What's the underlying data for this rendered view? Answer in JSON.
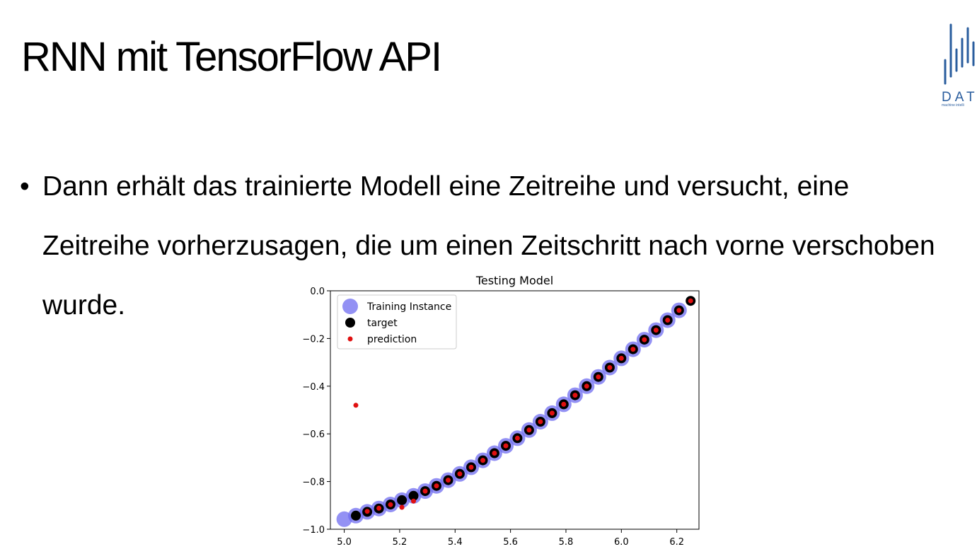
{
  "slide": {
    "title": "RNN mit TensorFlow API",
    "bullets": [
      "Dann erhält das trainierte Modell eine Zeitreihe und versucht, eine Zeitreihe vorherzusagen, die um einen Zeitschritt nach vorne verschoben wurde."
    ]
  },
  "logo": {
    "text": "DAT",
    "subtext": "machine intelli",
    "color": "#2a5d9e"
  },
  "chart_data": {
    "type": "scatter",
    "title": "Testing Model",
    "xlabel": "",
    "ylabel": "",
    "xlim": [
      4.95,
      6.28
    ],
    "ylim": [
      -1.0,
      0.0
    ],
    "xticks": [
      "5.0",
      "5.2",
      "5.4",
      "5.6",
      "5.8",
      "6.0",
      "6.2"
    ],
    "yticks": [
      "0.0",
      "−0.2",
      "−0.4",
      "−0.6",
      "−0.8",
      "−1.0"
    ],
    "legend_position": "top-left",
    "series": [
      {
        "name": "Training Instance",
        "color": "#6f6cf0",
        "marker": "large-circle",
        "x": [
          5.0,
          5.042,
          5.083,
          5.125,
          5.167,
          5.208,
          5.25,
          5.292,
          5.333,
          5.375,
          5.417,
          5.458,
          5.5,
          5.542,
          5.583,
          5.625,
          5.667,
          5.708,
          5.75,
          5.792,
          5.833,
          5.875,
          5.917,
          5.958,
          6.0,
          6.042,
          6.083,
          6.125,
          6.167,
          6.208
        ],
        "y": [
          -0.958,
          -0.943,
          -0.927,
          -0.913,
          -0.896,
          -0.878,
          -0.86,
          -0.84,
          -0.818,
          -0.794,
          -0.768,
          -0.74,
          -0.711,
          -0.681,
          -0.65,
          -0.618,
          -0.584,
          -0.549,
          -0.513,
          -0.476,
          -0.438,
          -0.4,
          -0.361,
          -0.322,
          -0.283,
          -0.245,
          -0.205,
          -0.165,
          -0.123,
          -0.082
        ]
      },
      {
        "name": "target",
        "color": "#000000",
        "marker": "circle",
        "x": [
          5.042,
          5.083,
          5.125,
          5.167,
          5.208,
          5.25,
          5.292,
          5.333,
          5.375,
          5.417,
          5.458,
          5.5,
          5.542,
          5.583,
          5.625,
          5.667,
          5.708,
          5.75,
          5.792,
          5.833,
          5.875,
          5.917,
          5.958,
          6.0,
          6.042,
          6.083,
          6.125,
          6.167,
          6.208,
          6.25
        ],
        "y": [
          -0.943,
          -0.927,
          -0.913,
          -0.896,
          -0.878,
          -0.86,
          -0.84,
          -0.818,
          -0.794,
          -0.768,
          -0.74,
          -0.711,
          -0.681,
          -0.65,
          -0.618,
          -0.584,
          -0.549,
          -0.513,
          -0.476,
          -0.438,
          -0.4,
          -0.361,
          -0.322,
          -0.283,
          -0.245,
          -0.205,
          -0.165,
          -0.123,
          -0.082,
          -0.042
        ]
      },
      {
        "name": "prediction",
        "color": "#e01010",
        "marker": "small-dot",
        "x": [
          5.042,
          5.083,
          5.125,
          5.167,
          5.208,
          5.25,
          5.292,
          5.333,
          5.375,
          5.417,
          5.458,
          5.5,
          5.542,
          5.583,
          5.625,
          5.667,
          5.708,
          5.75,
          5.792,
          5.833,
          5.875,
          5.917,
          5.958,
          6.0,
          6.042,
          6.083,
          6.125,
          6.167,
          6.208,
          6.25
        ],
        "y": [
          -0.48,
          -0.925,
          -0.912,
          -0.897,
          -0.908,
          -0.882,
          -0.84,
          -0.818,
          -0.794,
          -0.768,
          -0.74,
          -0.711,
          -0.681,
          -0.65,
          -0.618,
          -0.584,
          -0.549,
          -0.513,
          -0.476,
          -0.438,
          -0.4,
          -0.361,
          -0.322,
          -0.283,
          -0.245,
          -0.205,
          -0.165,
          -0.123,
          -0.082,
          -0.042
        ]
      }
    ]
  }
}
